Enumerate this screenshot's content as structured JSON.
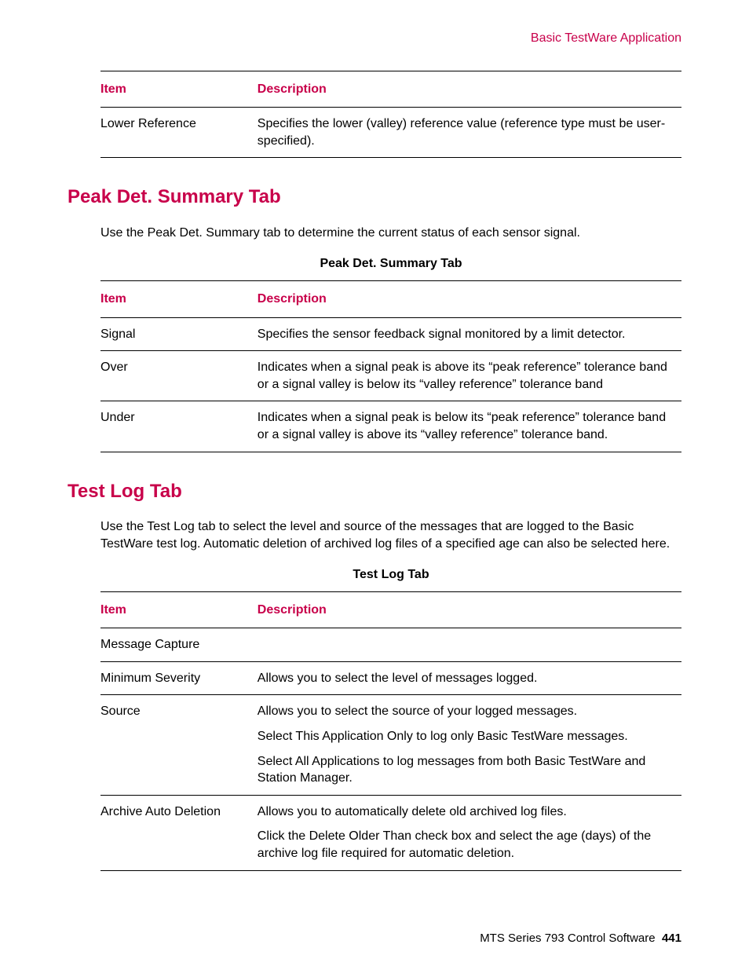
{
  "header": {
    "running_title": "Basic TestWare Application"
  },
  "colors": {
    "accent": "#c8004a",
    "text": "#000000",
    "background": "#ffffff"
  },
  "table1": {
    "header_item": "Item",
    "header_desc": "Description",
    "rows": [
      {
        "item": "Lower Reference",
        "desc": [
          "Specifies the lower (valley) reference value (reference type must be user-specified)."
        ]
      }
    ]
  },
  "section_peak": {
    "title": "Peak Det. Summary Tab",
    "intro": "Use the Peak Det. Summary tab to determine the current status of each sensor signal.",
    "table_caption": "Peak Det. Summary Tab",
    "header_item": "Item",
    "header_desc": "Description",
    "rows": [
      {
        "item": "Signal",
        "desc": [
          "Specifies the sensor feedback signal monitored by a limit detector."
        ]
      },
      {
        "item": "Over",
        "desc": [
          "Indicates when a signal peak is above its “peak reference” tolerance band or a signal valley is below its “valley reference” tolerance band"
        ]
      },
      {
        "item": "Under",
        "desc": [
          "Indicates when a signal peak is below its “peak reference” tolerance band or a signal valley is above its “valley reference” tolerance band."
        ]
      }
    ]
  },
  "section_log": {
    "title": "Test Log Tab",
    "intro": "Use the Test Log tab to select the level and source of the messages that are logged to the Basic TestWare test log. Automatic deletion of archived log files of a specified age can also be selected here.",
    "table_caption": "Test Log Tab",
    "header_item": "Item",
    "header_desc": "Description",
    "rows": [
      {
        "item": "Message Capture",
        "desc": [
          ""
        ]
      },
      {
        "item": "Minimum Severity",
        "desc": [
          "Allows you to select the level of messages logged."
        ]
      },
      {
        "item": "Source",
        "desc": [
          "Allows you to select the source of your logged messages.",
          "Select This Application Only to log only Basic TestWare messages.",
          "Select All Applications to log messages from both Basic TestWare and Station Manager."
        ]
      },
      {
        "item": "Archive Auto Deletion",
        "desc": [
          "Allows you to automatically delete old archived log files.",
          "Click the Delete Older Than check box and select the age (days) of the archive log file required for automatic deletion."
        ]
      }
    ]
  },
  "footer": {
    "product": "MTS Series 793 Control Software",
    "page_number": "441"
  }
}
